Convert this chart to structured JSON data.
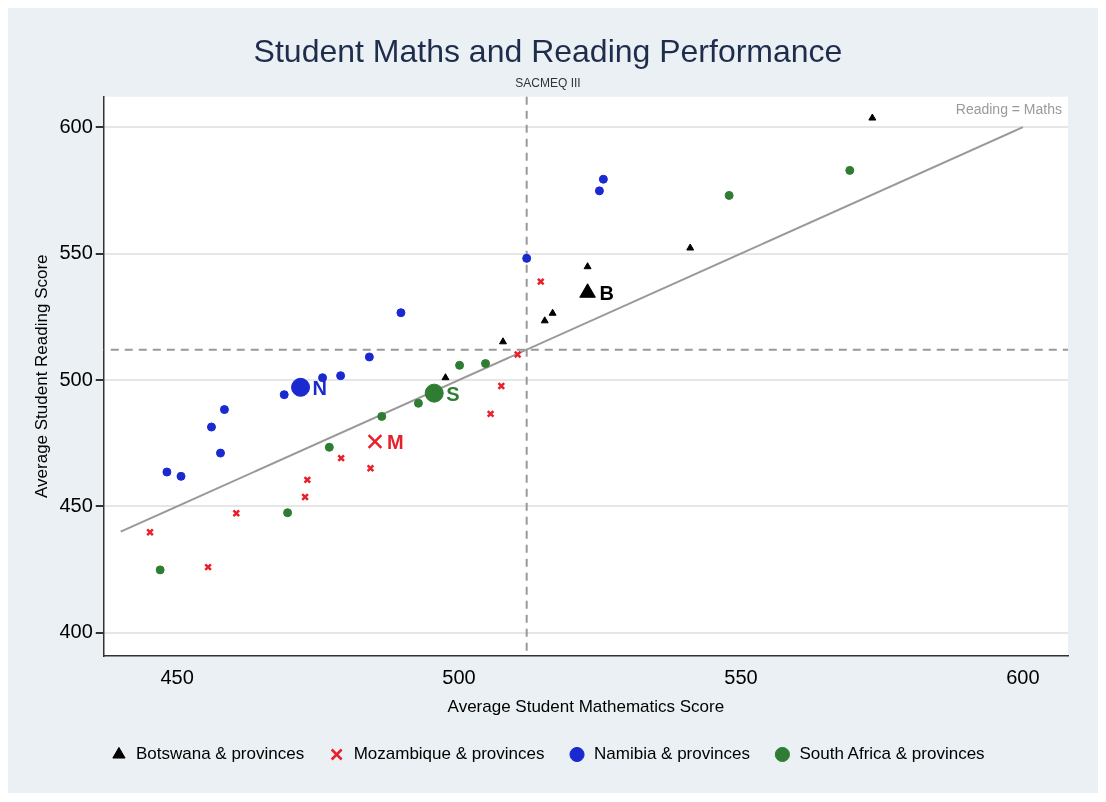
{
  "chart_data": {
    "type": "scatter",
    "title": "Student Maths and Reading Performance",
    "subtitle": "SACMEQ III",
    "xlabel": "Average Student Mathematics Score",
    "ylabel": "Average Student Reading Score",
    "xlim": [
      437,
      608
    ],
    "ylim": [
      391,
      612
    ],
    "xticks": [
      450,
      500,
      550,
      600
    ],
    "yticks": [
      400,
      450,
      500,
      550,
      600
    ],
    "grid": "y",
    "legend": "bottom",
    "series": [
      {
        "name": "Botswana & provinces",
        "color": "#000000",
        "marker": "triangle",
        "x": [
          497.6,
          507.8,
          515.2,
          516.6,
          522.8,
          541.0,
          573.3
        ],
        "values": [
          500.9,
          515.1,
          523.4,
          526.4,
          544.8,
          552.2,
          603.6
        ]
      },
      {
        "name": "Mozambique & provinces",
        "color": "#e8202a",
        "marker": "cross",
        "x": [
          445.2,
          455.5,
          460.5,
          472.7,
          473.1,
          479.1,
          484.3,
          505.6,
          507.5,
          510.4,
          514.5
        ],
        "values": [
          439.8,
          426.0,
          447.3,
          453.7,
          460.5,
          469.1,
          465.1,
          486.6,
          497.6,
          510.1,
          538.9
        ]
      },
      {
        "name": "Namibia & provinces",
        "color": "#1a2ad0",
        "marker": "circle",
        "x": [
          448.2,
          450.7,
          456.1,
          458.4,
          457.7,
          469.0,
          475.8,
          479.0,
          484.1,
          489.7,
          512.0,
          524.9,
          525.6
        ],
        "values": [
          463.6,
          461.9,
          481.4,
          488.3,
          471.1,
          494.2,
          500.9,
          501.7,
          509.1,
          526.6,
          548.1,
          574.8,
          579.4
        ]
      },
      {
        "name": "South Africa & provinces",
        "color": "#2e7d32",
        "marker": "circle",
        "x": [
          447.0,
          469.6,
          477.0,
          486.3,
          492.8,
          500.1,
          504.7,
          547.9,
          569.3
        ],
        "values": [
          424.9,
          447.5,
          473.4,
          485.6,
          490.8,
          505.8,
          506.5,
          573.0,
          582.9
        ]
      },
      {
        "color": "#000000",
        "marker": "triangle",
        "x": [
          522.8
        ],
        "values": [
          534.5
        ],
        "value_labels": [
          "B"
        ]
      },
      {
        "color": "#e8202a",
        "marker": "cross",
        "x": [
          485.1
        ],
        "values": [
          475.7
        ],
        "value_labels": [
          "M"
        ]
      },
      {
        "color": "#1a2ad0",
        "marker": "circle",
        "x": [
          471.9
        ],
        "values": [
          497.1
        ],
        "value_labels": [
          "N"
        ]
      },
      {
        "color": "#2e7d32",
        "marker": "circle",
        "x": [
          495.6
        ],
        "values": [
          494.8
        ],
        "value_labels": [
          "S"
        ]
      },
      {
        "type": "line",
        "color": "#999999",
        "marker": "none",
        "line_style": "solid",
        "x": [
          440,
          600
        ],
        "values": [
          440,
          600
        ]
      }
    ],
    "ref_lines": [
      {
        "axis": "x",
        "value": 512,
        "color": "#999999",
        "line_style": "dashed"
      },
      {
        "axis": "y",
        "value": 512,
        "color": "#999999",
        "line_style": "dashed"
      }
    ],
    "annotations": [
      "Reading = Maths"
    ]
  }
}
